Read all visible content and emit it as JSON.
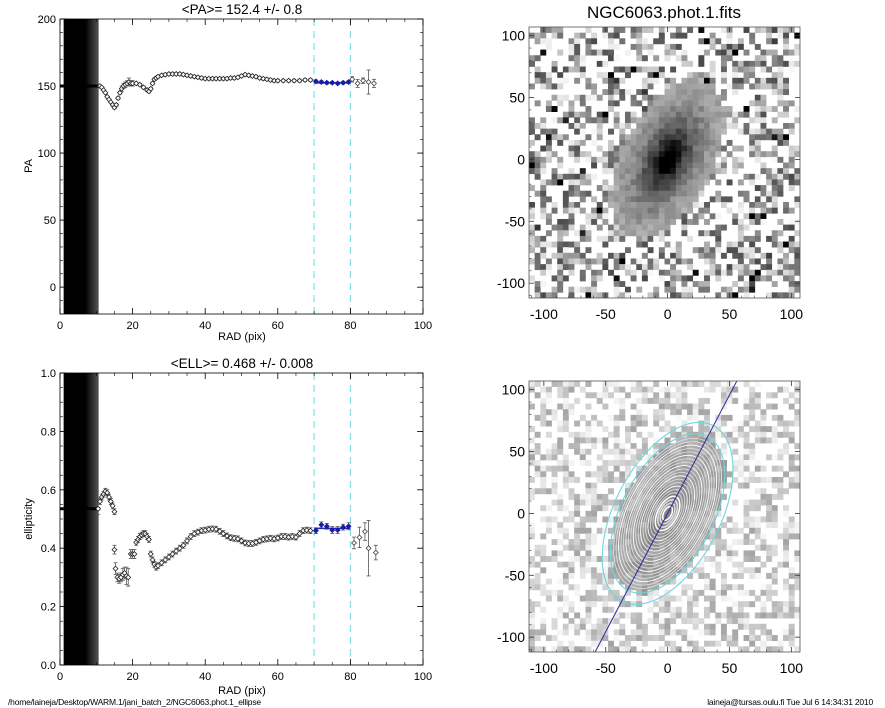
{
  "footer": {
    "path": "/home/laineja/Desktop/WARM.1/jani_batch_2/NGC6063.phot.1_ellipse",
    "stamp": "laineja@tursas.oulu.fi  Tue Jul  6 14:34:31 2010"
  },
  "colors": {
    "points": "#000000",
    "fit_points": "#1a1aa8",
    "fit_line": "#2020b0",
    "range_lines": "#7fe0ea",
    "contours_outer": "#6fd6dc",
    "pa_line": "#2a2aa0"
  },
  "chart_data": [
    {
      "id": "pa_profile",
      "type": "scatter",
      "title": "<PA>= 152.4 +/-   0.8",
      "xlabel": "RAD (pix)",
      "ylabel": "PA",
      "xlim": [
        0,
        100
      ],
      "ylim": [
        -20,
        200
      ],
      "xticks": [
        0,
        20,
        40,
        60,
        80,
        100
      ],
      "yticks": [
        0,
        50,
        100,
        150,
        200
      ],
      "fit_range": [
        70,
        80
      ],
      "fit_value": 152.4,
      "core_band": {
        "x_from": 2,
        "x_to": 10.5,
        "value": 150
      },
      "points": [
        {
          "x": 11,
          "y": 150,
          "e": 0
        },
        {
          "x": 11.5,
          "y": 149,
          "e": 0
        },
        {
          "x": 12,
          "y": 147,
          "e": 0
        },
        {
          "x": 12.5,
          "y": 145,
          "e": 0
        },
        {
          "x": 13,
          "y": 142,
          "e": 0
        },
        {
          "x": 13.5,
          "y": 140,
          "e": 0
        },
        {
          "x": 14,
          "y": 138,
          "e": 0
        },
        {
          "x": 14.5,
          "y": 136,
          "e": 1
        },
        {
          "x": 15,
          "y": 134,
          "e": 1
        },
        {
          "x": 15.5,
          "y": 136,
          "e": 1
        },
        {
          "x": 16,
          "y": 141,
          "e": 1
        },
        {
          "x": 16.5,
          "y": 145,
          "e": 1
        },
        {
          "x": 17,
          "y": 148,
          "e": 2
        },
        {
          "x": 17.5,
          "y": 150,
          "e": 2
        },
        {
          "x": 18,
          "y": 151,
          "e": 2
        },
        {
          "x": 18.5,
          "y": 152,
          "e": 2
        },
        {
          "x": 19,
          "y": 153,
          "e": 3
        },
        {
          "x": 19.5,
          "y": 152,
          "e": 2
        },
        {
          "x": 20,
          "y": 152,
          "e": 2
        },
        {
          "x": 21,
          "y": 152,
          "e": 1
        },
        {
          "x": 22,
          "y": 151,
          "e": 1
        },
        {
          "x": 23,
          "y": 149,
          "e": 1
        },
        {
          "x": 24,
          "y": 147,
          "e": 1
        },
        {
          "x": 24.5,
          "y": 146,
          "e": 1
        },
        {
          "x": 25,
          "y": 148,
          "e": 1
        },
        {
          "x": 25.5,
          "y": 152,
          "e": 1
        },
        {
          "x": 26,
          "y": 155,
          "e": 1
        },
        {
          "x": 26.5,
          "y": 156,
          "e": 1
        },
        {
          "x": 27,
          "y": 157,
          "e": 1
        },
        {
          "x": 28,
          "y": 158,
          "e": 1
        },
        {
          "x": 29,
          "y": 158.5,
          "e": 1
        },
        {
          "x": 30,
          "y": 159,
          "e": 1
        },
        {
          "x": 31,
          "y": 159,
          "e": 1
        },
        {
          "x": 32,
          "y": 159,
          "e": 1
        },
        {
          "x": 33,
          "y": 159,
          "e": 1
        },
        {
          "x": 34,
          "y": 158.5,
          "e": 1
        },
        {
          "x": 35,
          "y": 158,
          "e": 1
        },
        {
          "x": 36,
          "y": 157.5,
          "e": 1
        },
        {
          "x": 37,
          "y": 157,
          "e": 1
        },
        {
          "x": 38,
          "y": 156.5,
          "e": 1
        },
        {
          "x": 39,
          "y": 156,
          "e": 1
        },
        {
          "x": 40,
          "y": 155.5,
          "e": 1
        },
        {
          "x": 41,
          "y": 155.5,
          "e": 1
        },
        {
          "x": 42,
          "y": 155.5,
          "e": 1
        },
        {
          "x": 43,
          "y": 155.5,
          "e": 1
        },
        {
          "x": 44,
          "y": 155.5,
          "e": 1
        },
        {
          "x": 45,
          "y": 155.5,
          "e": 1
        },
        {
          "x": 46,
          "y": 155.5,
          "e": 1
        },
        {
          "x": 47,
          "y": 156,
          "e": 1
        },
        {
          "x": 48,
          "y": 156,
          "e": 1
        },
        {
          "x": 49,
          "y": 156.5,
          "e": 1
        },
        {
          "x": 50,
          "y": 157.5,
          "e": 1
        },
        {
          "x": 51,
          "y": 158.5,
          "e": 1
        },
        {
          "x": 52,
          "y": 158,
          "e": 1
        },
        {
          "x": 53,
          "y": 157.5,
          "e": 1
        },
        {
          "x": 54,
          "y": 157,
          "e": 1
        },
        {
          "x": 55,
          "y": 156,
          "e": 1
        },
        {
          "x": 56,
          "y": 155.5,
          "e": 1
        },
        {
          "x": 57,
          "y": 155,
          "e": 1
        },
        {
          "x": 58,
          "y": 154.5,
          "e": 1
        },
        {
          "x": 59,
          "y": 154,
          "e": 1
        },
        {
          "x": 60,
          "y": 154,
          "e": 1
        },
        {
          "x": 61.5,
          "y": 154,
          "e": 1
        },
        {
          "x": 63,
          "y": 154,
          "e": 1
        },
        {
          "x": 64.5,
          "y": 154,
          "e": 1
        },
        {
          "x": 66,
          "y": 154,
          "e": 1
        },
        {
          "x": 67.5,
          "y": 154.5,
          "e": 1
        },
        {
          "x": 69,
          "y": 154.5,
          "e": 1
        }
      ],
      "fit_points": [
        {
          "x": 70.5,
          "y": 153.5,
          "e": 1
        },
        {
          "x": 72,
          "y": 153,
          "e": 1
        },
        {
          "x": 73.5,
          "y": 152.5,
          "e": 1
        },
        {
          "x": 75,
          "y": 152.5,
          "e": 1
        },
        {
          "x": 76.5,
          "y": 152,
          "e": 1
        },
        {
          "x": 78,
          "y": 152.5,
          "e": 1
        },
        {
          "x": 79.5,
          "y": 153,
          "e": 1
        }
      ],
      "outer_points": [
        {
          "x": 80.5,
          "y": 155,
          "e": 2
        },
        {
          "x": 82,
          "y": 152,
          "e": 3
        },
        {
          "x": 83.5,
          "y": 154,
          "e": 2
        },
        {
          "x": 85,
          "y": 153,
          "e": 9
        },
        {
          "x": 86.5,
          "y": 152,
          "e": 3
        }
      ]
    },
    {
      "id": "ellipticity_profile",
      "type": "scatter",
      "title": "<ELL>= 0.468 +/-  0.008",
      "xlabel": "RAD (pix)",
      "ylabel": "ellipticity",
      "xlim": [
        0,
        100
      ],
      "ylim": [
        0,
        1
      ],
      "xticks": [
        0,
        20,
        40,
        60,
        80,
        100
      ],
      "yticks": [
        0.0,
        0.2,
        0.4,
        0.6,
        0.8,
        1.0
      ],
      "fit_range": [
        70,
        80
      ],
      "fit_value": 0.468,
      "core_band": {
        "x_from": 2,
        "x_to": 10.5,
        "value": 0.535
      },
      "points": [
        {
          "x": 10.5,
          "y": 0.535,
          "e": 0.02
        },
        {
          "x": 11,
          "y": 0.56,
          "e": 0.01
        },
        {
          "x": 11.5,
          "y": 0.575,
          "e": 0.01
        },
        {
          "x": 12,
          "y": 0.585,
          "e": 0.01
        },
        {
          "x": 12.5,
          "y": 0.595,
          "e": 0.01
        },
        {
          "x": 13,
          "y": 0.59,
          "e": 0.01
        },
        {
          "x": 13.5,
          "y": 0.575,
          "e": 0.01
        },
        {
          "x": 14,
          "y": 0.56,
          "e": 0.01
        },
        {
          "x": 14.5,
          "y": 0.545,
          "e": 0.01
        },
        {
          "x": 15,
          "y": 0.525,
          "e": 0.01
        },
        {
          "x": 15,
          "y": 0.395,
          "e": 0.015
        },
        {
          "x": 15.3,
          "y": 0.33,
          "e": 0.02
        },
        {
          "x": 15.8,
          "y": 0.3,
          "e": 0.015
        },
        {
          "x": 16.3,
          "y": 0.295,
          "e": 0.015
        },
        {
          "x": 16.8,
          "y": 0.3,
          "e": 0.015
        },
        {
          "x": 17.3,
          "y": 0.31,
          "e": 0.02
        },
        {
          "x": 17.8,
          "y": 0.315,
          "e": 0.02
        },
        {
          "x": 18.3,
          "y": 0.305,
          "e": 0.03
        },
        {
          "x": 18.8,
          "y": 0.3,
          "e": 0.03
        },
        {
          "x": 19.5,
          "y": 0.38,
          "e": 0.015
        },
        {
          "x": 20,
          "y": 0.38,
          "e": 0.015
        },
        {
          "x": 20.5,
          "y": 0.38,
          "e": 0.015
        },
        {
          "x": 21,
          "y": 0.42,
          "e": 0.01
        },
        {
          "x": 21.5,
          "y": 0.43,
          "e": 0.01
        },
        {
          "x": 22,
          "y": 0.44,
          "e": 0.01
        },
        {
          "x": 22.5,
          "y": 0.445,
          "e": 0.01
        },
        {
          "x": 23,
          "y": 0.45,
          "e": 0.01
        },
        {
          "x": 23.5,
          "y": 0.45,
          "e": 0.01
        },
        {
          "x": 24,
          "y": 0.44,
          "e": 0.01
        },
        {
          "x": 24.5,
          "y": 0.43,
          "e": 0.01
        },
        {
          "x": 25,
          "y": 0.38,
          "e": 0.01
        },
        {
          "x": 25.5,
          "y": 0.36,
          "e": 0.01
        },
        {
          "x": 26,
          "y": 0.345,
          "e": 0.01
        },
        {
          "x": 26.5,
          "y": 0.335,
          "e": 0.01
        },
        {
          "x": 27,
          "y": 0.34,
          "e": 0.01
        },
        {
          "x": 28,
          "y": 0.35,
          "e": 0.01
        },
        {
          "x": 29,
          "y": 0.36,
          "e": 0.01
        },
        {
          "x": 30,
          "y": 0.37,
          "e": 0.01
        },
        {
          "x": 31,
          "y": 0.38,
          "e": 0.01
        },
        {
          "x": 32,
          "y": 0.39,
          "e": 0.01
        },
        {
          "x": 33,
          "y": 0.4,
          "e": 0.01
        },
        {
          "x": 34,
          "y": 0.41,
          "e": 0.01
        },
        {
          "x": 35,
          "y": 0.425,
          "e": 0.01
        },
        {
          "x": 36,
          "y": 0.44,
          "e": 0.01
        },
        {
          "x": 37,
          "y": 0.45,
          "e": 0.01
        },
        {
          "x": 38,
          "y": 0.455,
          "e": 0.01
        },
        {
          "x": 39,
          "y": 0.46,
          "e": 0.01
        },
        {
          "x": 40,
          "y": 0.462,
          "e": 0.01
        },
        {
          "x": 41,
          "y": 0.465,
          "e": 0.01
        },
        {
          "x": 42,
          "y": 0.466,
          "e": 0.01
        },
        {
          "x": 43,
          "y": 0.465,
          "e": 0.01
        },
        {
          "x": 44,
          "y": 0.458,
          "e": 0.01
        },
        {
          "x": 45,
          "y": 0.45,
          "e": 0.01
        },
        {
          "x": 46,
          "y": 0.442,
          "e": 0.01
        },
        {
          "x": 47,
          "y": 0.436,
          "e": 0.01
        },
        {
          "x": 48,
          "y": 0.434,
          "e": 0.01
        },
        {
          "x": 49,
          "y": 0.432,
          "e": 0.01
        },
        {
          "x": 50,
          "y": 0.425,
          "e": 0.01
        },
        {
          "x": 51,
          "y": 0.418,
          "e": 0.01
        },
        {
          "x": 52,
          "y": 0.416,
          "e": 0.01
        },
        {
          "x": 53,
          "y": 0.416,
          "e": 0.01
        },
        {
          "x": 54,
          "y": 0.42,
          "e": 0.01
        },
        {
          "x": 55,
          "y": 0.425,
          "e": 0.01
        },
        {
          "x": 56,
          "y": 0.43,
          "e": 0.01
        },
        {
          "x": 57,
          "y": 0.432,
          "e": 0.01
        },
        {
          "x": 58,
          "y": 0.434,
          "e": 0.01
        },
        {
          "x": 59,
          "y": 0.432,
          "e": 0.01
        },
        {
          "x": 60,
          "y": 0.435,
          "e": 0.01
        },
        {
          "x": 61,
          "y": 0.44,
          "e": 0.01
        },
        {
          "x": 62,
          "y": 0.44,
          "e": 0.01
        },
        {
          "x": 63,
          "y": 0.438,
          "e": 0.01
        },
        {
          "x": 64,
          "y": 0.44,
          "e": 0.01
        },
        {
          "x": 65,
          "y": 0.438,
          "e": 0.01
        },
        {
          "x": 66,
          "y": 0.45,
          "e": 0.01
        },
        {
          "x": 67,
          "y": 0.46,
          "e": 0.01
        },
        {
          "x": 68,
          "y": 0.462,
          "e": 0.01
        },
        {
          "x": 69,
          "y": 0.46,
          "e": 0.01
        }
      ],
      "fit_points": [
        {
          "x": 70.5,
          "y": 0.46,
          "e": 0.01
        },
        {
          "x": 72,
          "y": 0.48,
          "e": 0.01
        },
        {
          "x": 73.5,
          "y": 0.475,
          "e": 0.01
        },
        {
          "x": 75,
          "y": 0.462,
          "e": 0.012
        },
        {
          "x": 76.5,
          "y": 0.462,
          "e": 0.012
        },
        {
          "x": 78,
          "y": 0.472,
          "e": 0.01
        },
        {
          "x": 79.5,
          "y": 0.475,
          "e": 0.012
        }
      ],
      "outer_points": [
        {
          "x": 81,
          "y": 0.418,
          "e": 0.02
        },
        {
          "x": 82.5,
          "y": 0.437,
          "e": 0.035
        },
        {
          "x": 84,
          "y": 0.457,
          "e": 0.03
        },
        {
          "x": 85,
          "y": 0.4,
          "e": 0.095
        },
        {
          "x": 87,
          "y": 0.385,
          "e": 0.025
        }
      ]
    },
    {
      "id": "galaxy_image",
      "type": "heatmap",
      "title": "NGC6063.phot.1.fits",
      "xlim": [
        -112,
        107
      ],
      "ylim": [
        -112,
        107
      ],
      "xticks": [
        -100,
        -50,
        0,
        50,
        100
      ],
      "yticks": [
        -100,
        -50,
        0,
        50,
        100
      ],
      "colormap": "inverted grayscale",
      "galaxy": {
        "center": [
          0,
          0
        ],
        "pa_deg": 152.4,
        "ellipticity": 0.468,
        "extent": 75
      }
    },
    {
      "id": "galaxy_contours",
      "type": "heatmap",
      "title": "",
      "xlim": [
        -112,
        107
      ],
      "ylim": [
        -112,
        107
      ],
      "xticks": [
        -100,
        -50,
        0,
        50,
        100
      ],
      "yticks": [
        -100,
        -50,
        0,
        50,
        100
      ],
      "colormap": "inverted grayscale",
      "pa_line_deg": 152.4,
      "ellipse_semi_major_axes": [
        6,
        9,
        12,
        15,
        18,
        21,
        24,
        27,
        30,
        33,
        36,
        39,
        42,
        45,
        48,
        51,
        54,
        57,
        60,
        63,
        66
      ],
      "highlight_ellipses": [
        70,
        80
      ]
    }
  ]
}
